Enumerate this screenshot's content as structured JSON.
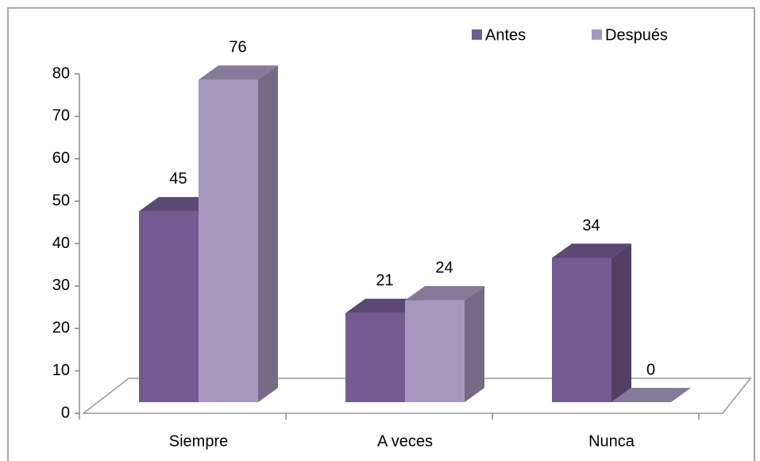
{
  "chart_data": {
    "type": "bar",
    "categories": [
      "Siempre",
      "A veces",
      "Nunca"
    ],
    "series": [
      {
        "name": "Antes",
        "color": "#735a91",
        "values": [
          45,
          21,
          34
        ]
      },
      {
        "name": "Después",
        "color": "#a898c0",
        "values": [
          76,
          24,
          0
        ]
      }
    ],
    "ylim": [
      0,
      80
    ],
    "yticks": [
      0,
      10,
      20,
      30,
      40,
      50,
      60,
      70,
      80
    ],
    "legend": "top-right"
  }
}
